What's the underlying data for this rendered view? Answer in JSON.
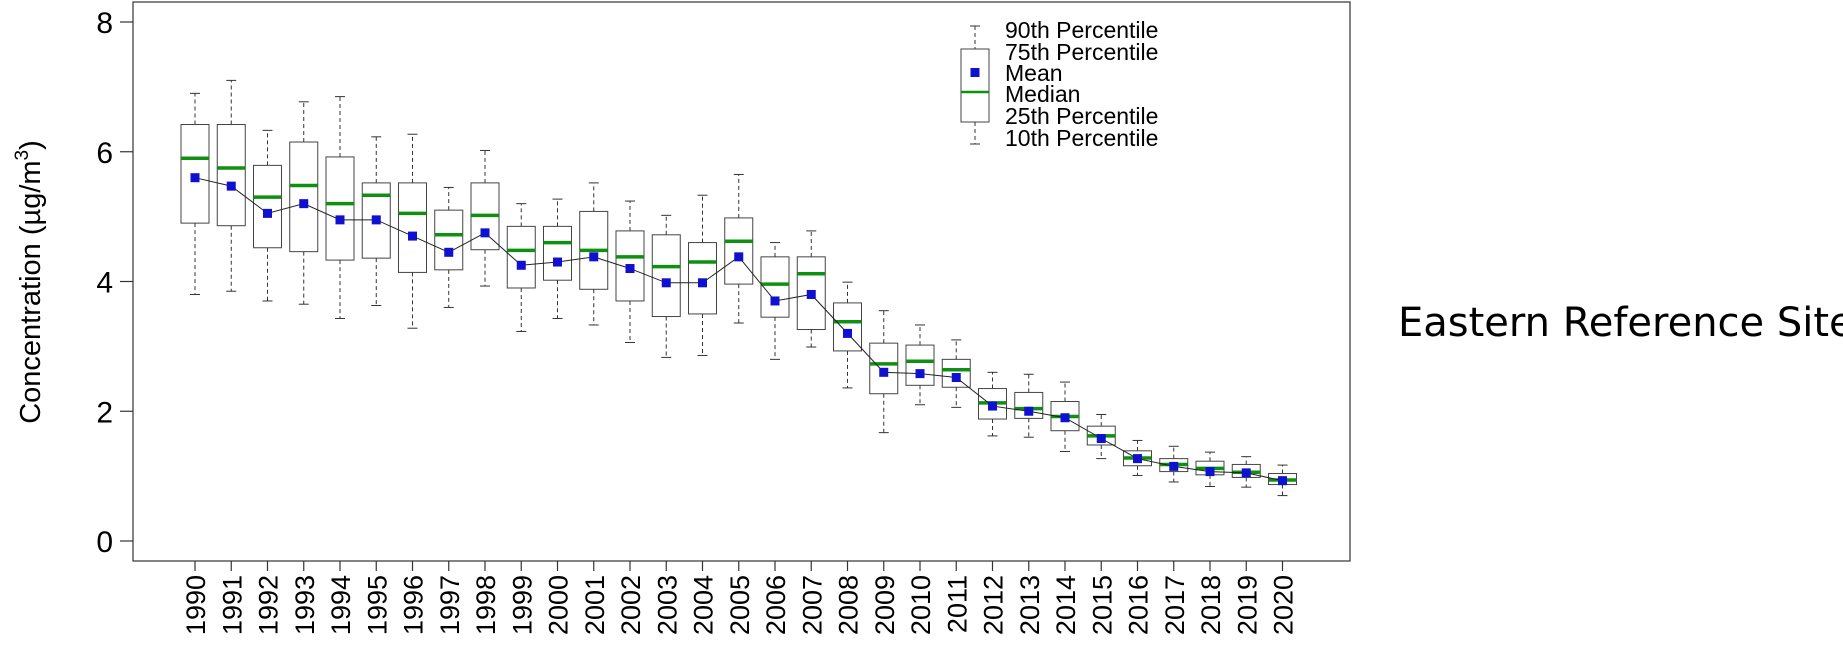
{
  "side_title": "Eastern Reference Sites",
  "chart_data": {
    "type": "boxplot",
    "ylabel": "Concentration (µg/m",
    "ylabel_superscript": "3",
    "ylabel_suffix": ")",
    "ylim": [
      -0.3,
      8.3
    ],
    "yticks": [
      0,
      2,
      4,
      6,
      8
    ],
    "categories": [
      "1990",
      "1991",
      "1992",
      "1993",
      "1994",
      "1995",
      "1996",
      "1997",
      "1998",
      "1999",
      "2000",
      "2001",
      "2002",
      "2003",
      "2004",
      "2005",
      "2006",
      "2007",
      "2008",
      "2009",
      "2010",
      "2011",
      "2012",
      "2013",
      "2014",
      "2015",
      "2016",
      "2017",
      "2018",
      "2019",
      "2020"
    ],
    "p10": [
      3.8,
      3.85,
      3.7,
      3.65,
      3.43,
      3.63,
      3.28,
      3.6,
      3.93,
      3.23,
      3.43,
      3.33,
      3.06,
      2.83,
      2.86,
      3.36,
      2.8,
      2.99,
      2.36,
      1.67,
      2.1,
      2.06,
      1.62,
      1.6,
      1.38,
      1.27,
      1.01,
      0.91,
      0.84,
      0.83,
      0.7
    ],
    "p25": [
      4.9,
      4.86,
      4.52,
      4.46,
      4.33,
      4.36,
      4.14,
      4.18,
      4.49,
      3.9,
      4.02,
      3.88,
      3.7,
      3.46,
      3.5,
      3.96,
      3.45,
      3.26,
      2.93,
      2.27,
      2.4,
      2.37,
      1.88,
      1.89,
      1.7,
      1.48,
      1.16,
      1.07,
      1.02,
      0.98,
      0.87
    ],
    "median": [
      5.9,
      5.75,
      5.3,
      5.48,
      5.2,
      5.33,
      5.05,
      4.72,
      5.02,
      4.48,
      4.6,
      4.48,
      4.38,
      4.23,
      4.3,
      4.62,
      3.96,
      4.12,
      3.38,
      2.73,
      2.77,
      2.64,
      2.13,
      2.04,
      1.92,
      1.62,
      1.28,
      1.18,
      1.12,
      1.06,
      0.94
    ],
    "p75": [
      6.42,
      6.42,
      5.79,
      6.15,
      5.92,
      5.52,
      5.52,
      5.1,
      5.52,
      4.85,
      4.85,
      5.08,
      4.78,
      4.72,
      4.6,
      4.98,
      4.38,
      4.38,
      3.67,
      3.05,
      3.02,
      2.8,
      2.35,
      2.29,
      2.15,
      1.77,
      1.39,
      1.27,
      1.23,
      1.18,
      1.04
    ],
    "p90": [
      6.9,
      7.1,
      6.33,
      6.77,
      6.85,
      6.23,
      6.27,
      5.45,
      6.02,
      5.2,
      5.27,
      5.52,
      5.24,
      5.02,
      5.33,
      5.65,
      4.6,
      4.78,
      3.99,
      3.55,
      3.33,
      3.1,
      2.6,
      2.57,
      2.45,
      1.95,
      1.55,
      1.46,
      1.37,
      1.3,
      1.17
    ],
    "mean": [
      5.6,
      5.47,
      5.05,
      5.2,
      4.95,
      4.95,
      4.7,
      4.45,
      4.75,
      4.25,
      4.3,
      4.38,
      4.2,
      3.98,
      3.98,
      4.38,
      3.7,
      3.8,
      3.2,
      2.6,
      2.58,
      2.52,
      2.08,
      2.0,
      1.9,
      1.58,
      1.27,
      1.15,
      1.07,
      1.05,
      0.93
    ],
    "colors": {
      "median": "#109010",
      "mean": "#1010d0",
      "box": "#444444",
      "mean_line": "#222222"
    },
    "legend": {
      "position": "top-right",
      "entries": [
        "90th Percentile",
        "75th Percentile",
        "Mean",
        "Median",
        "25th Percentile",
        "10th Percentile"
      ]
    }
  }
}
